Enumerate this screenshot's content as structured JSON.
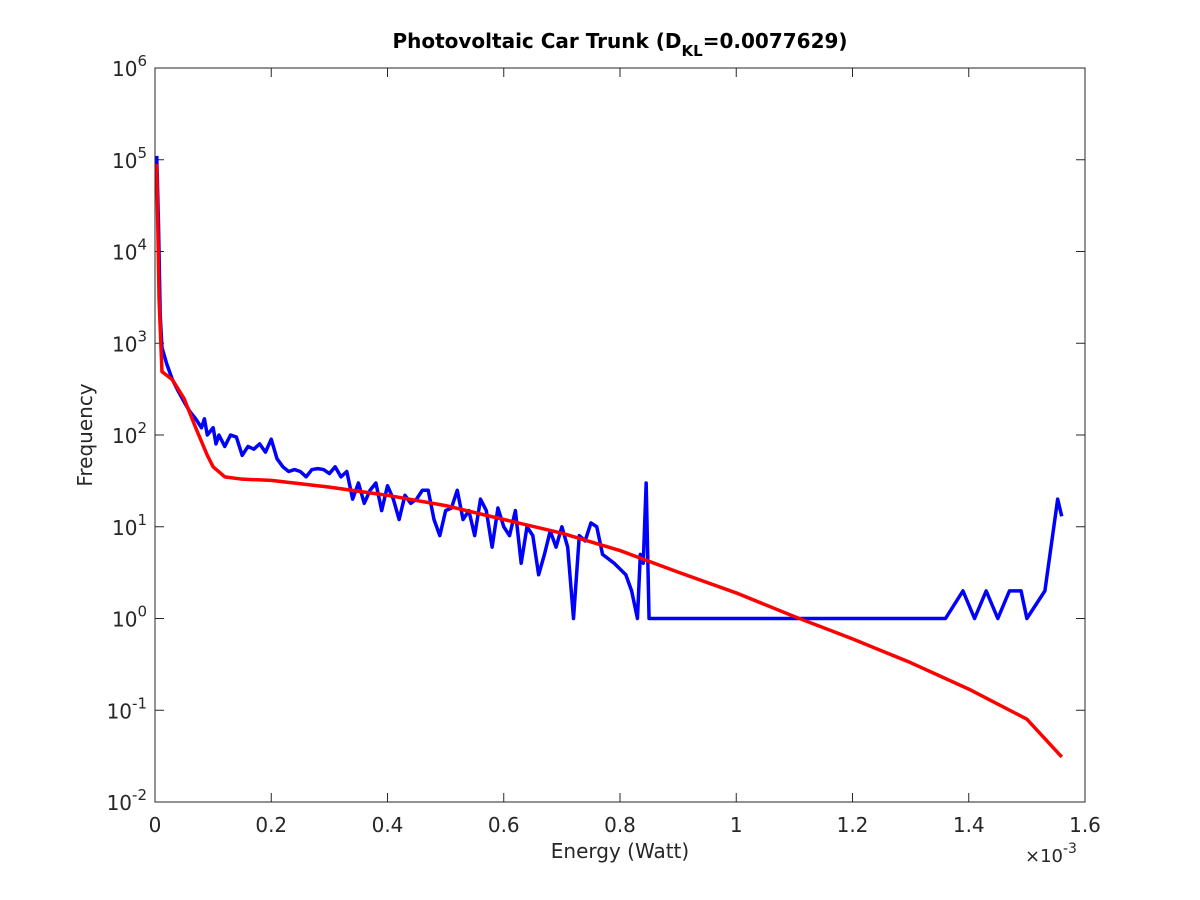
{
  "chart_data": {
    "type": "line",
    "title": "Photovoltaic Car Trunk (D",
    "title_subscript": "KL",
    "title_end": "=0.0077629)",
    "xlabel": "Energy (Watt)",
    "ylabel": "Frequency",
    "x_multiplier": {
      "label": "×10",
      "exponent": "-3"
    },
    "xlim": [
      0,
      1.6
    ],
    "xticks": [
      0,
      0.2,
      0.4,
      0.6,
      0.8,
      1,
      1.2,
      1.4,
      1.6
    ],
    "ylim": [
      0.01,
      1000000
    ],
    "yscale": "log",
    "yticks": [
      {
        "value": 0.01,
        "label": "10",
        "exponent": "-2"
      },
      {
        "value": 0.1,
        "label": "10",
        "exponent": "-1"
      },
      {
        "value": 1,
        "label": "10",
        "exponent": "0"
      },
      {
        "value": 10,
        "label": "10",
        "exponent": "1"
      },
      {
        "value": 100,
        "label": "10",
        "exponent": "2"
      },
      {
        "value": 1000,
        "label": "10",
        "exponent": "3"
      },
      {
        "value": 10000,
        "label": "10",
        "exponent": "4"
      },
      {
        "value": 100000,
        "label": "10",
        "exponent": "5"
      },
      {
        "value": 1000000,
        "label": "10",
        "exponent": "6"
      }
    ],
    "series": [
      {
        "color": "#0000ff",
        "x": [
          0.003,
          0.006,
          0.009,
          0.012,
          0.02,
          0.03,
          0.04,
          0.05,
          0.06,
          0.07,
          0.08,
          0.085,
          0.09,
          0.1,
          0.105,
          0.11,
          0.12,
          0.13,
          0.14,
          0.15,
          0.16,
          0.17,
          0.18,
          0.19,
          0.2,
          0.21,
          0.22,
          0.23,
          0.24,
          0.25,
          0.26,
          0.27,
          0.28,
          0.29,
          0.3,
          0.31,
          0.32,
          0.33,
          0.34,
          0.35,
          0.36,
          0.37,
          0.38,
          0.39,
          0.4,
          0.41,
          0.42,
          0.43,
          0.44,
          0.45,
          0.46,
          0.47,
          0.48,
          0.49,
          0.5,
          0.51,
          0.52,
          0.53,
          0.54,
          0.55,
          0.56,
          0.57,
          0.58,
          0.59,
          0.6,
          0.61,
          0.62,
          0.63,
          0.64,
          0.65,
          0.66,
          0.67,
          0.68,
          0.69,
          0.7,
          0.71,
          0.72,
          0.73,
          0.74,
          0.75,
          0.76,
          0.77,
          0.79,
          0.81,
          0.82,
          0.83,
          0.835,
          0.84,
          0.845,
          0.85,
          1.36,
          1.39,
          1.41,
          1.43,
          1.45,
          1.47,
          1.49,
          1.5,
          1.531,
          1.553,
          1.56
        ],
        "values": [
          110000,
          20000,
          2000,
          900,
          600,
          400,
          300,
          230,
          180,
          150,
          120,
          150,
          100,
          120,
          80,
          100,
          75,
          100,
          95,
          60,
          75,
          70,
          80,
          65,
          90,
          55,
          45,
          40,
          42,
          40,
          35,
          42,
          43,
          42,
          38,
          45,
          35,
          40,
          20,
          30,
          18,
          25,
          30,
          15,
          28,
          20,
          12,
          22,
          18,
          20,
          25,
          25,
          12,
          8,
          15,
          16,
          25,
          12,
          15,
          8,
          20,
          15,
          6,
          16,
          10,
          8,
          15,
          4,
          10,
          8,
          3,
          5,
          9,
          6,
          10,
          6,
          1,
          8,
          7,
          11,
          10,
          5,
          4,
          3,
          2,
          1,
          5,
          4,
          30,
          1,
          1,
          2,
          1,
          2,
          1,
          2,
          2,
          1,
          2,
          20,
          13
        ]
      },
      {
        "color": "#ff0000",
        "x": [
          0.003,
          0.007,
          0.012,
          0.03,
          0.05,
          0.07,
          0.09,
          0.1,
          0.12,
          0.15,
          0.2,
          0.3,
          0.4,
          0.5,
          0.6,
          0.7,
          0.8,
          0.9,
          1.0,
          1.1,
          1.2,
          1.3,
          1.4,
          1.5,
          1.56
        ],
        "values": [
          90000,
          3000,
          490,
          400,
          250,
          120,
          60,
          45,
          35,
          33,
          32,
          27,
          22,
          17,
          12,
          8.5,
          5.5,
          3.2,
          1.9,
          1.05,
          0.6,
          0.33,
          0.17,
          0.08,
          0.031
        ]
      }
    ]
  }
}
